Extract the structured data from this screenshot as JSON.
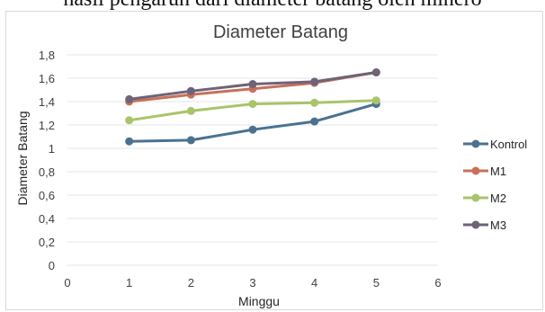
{
  "document": {
    "partial_text": "hasil pengaruh dari diameter batang oleh minero"
  },
  "chart_data": {
    "type": "line",
    "title": "Diameter Batang",
    "xlabel": "Minggu",
    "ylabel": "Diameter Batang",
    "x": [
      1,
      2,
      3,
      4,
      5
    ],
    "xlim": [
      0,
      6
    ],
    "ylim": [
      0,
      1.8
    ],
    "x_ticks": [
      0,
      1,
      2,
      3,
      4,
      5,
      6
    ],
    "y_ticks": [
      0,
      0.2,
      0.4,
      0.6,
      0.8,
      1,
      1.2,
      1.4,
      1.6,
      1.8
    ],
    "x_tick_labels": [
      "0",
      "1",
      "2",
      "3",
      "4",
      "5",
      "6"
    ],
    "y_tick_labels": [
      "0",
      "0,2",
      "0,4",
      "0,6",
      "0,8",
      "1",
      "1,2",
      "1,4",
      "1,6",
      "1,8"
    ],
    "grid": true,
    "legend_position": "right",
    "series": [
      {
        "name": "Kontrol",
        "color": "#4a7290",
        "values": [
          1.06,
          1.07,
          1.16,
          1.23,
          1.38
        ]
      },
      {
        "name": "M1",
        "color": "#c8705a",
        "values": [
          1.4,
          1.46,
          1.51,
          1.56,
          1.65
        ]
      },
      {
        "name": "M2",
        "color": "#a9c46a",
        "values": [
          1.24,
          1.32,
          1.38,
          1.39,
          1.41
        ]
      },
      {
        "name": "M3",
        "color": "#6e6378",
        "values": [
          1.42,
          1.49,
          1.55,
          1.57,
          1.65
        ]
      }
    ]
  }
}
